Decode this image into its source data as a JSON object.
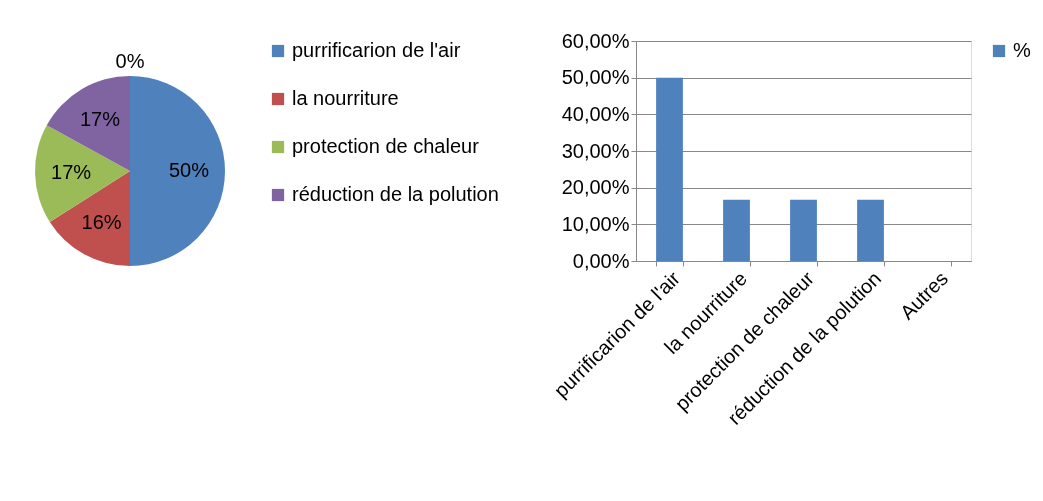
{
  "chart_data": [
    {
      "type": "pie",
      "categories": [
        "purrificarion de l'air",
        "la nourriture",
        "protection de chaleur",
        "réduction de la polution",
        null
      ],
      "values": [
        50,
        16,
        17,
        17,
        0
      ],
      "colors": [
        "#4f81bd",
        "#c0504d",
        "#9bbb59",
        "#8064a2",
        "#4bacc6"
      ],
      "value_labels": [
        "50%",
        "16%",
        "17%",
        "17%",
        "0%"
      ],
      "legend": "right"
    },
    {
      "type": "bar",
      "categories": [
        "purrificarion de l'air",
        "la nourriture",
        "protection de chaleur",
        "réduction de la polution",
        "Autres"
      ],
      "series": [
        {
          "name": "%",
          "color": "#4f81bd",
          "values": [
            50,
            16.7,
            16.7,
            16.7,
            0
          ]
        }
      ],
      "ylim": [
        0,
        60
      ],
      "yticks": [
        {
          "value": 0,
          "label": "0,00%"
        },
        {
          "value": 10,
          "label": "10,00%"
        },
        {
          "value": 20,
          "label": "20,00%"
        },
        {
          "value": 30,
          "label": "30,00%"
        },
        {
          "value": 40,
          "label": "40,00%"
        },
        {
          "value": 50,
          "label": "50,00%"
        },
        {
          "value": 60,
          "label": "60,00%"
        }
      ],
      "grid": "y",
      "legend": "right"
    }
  ]
}
